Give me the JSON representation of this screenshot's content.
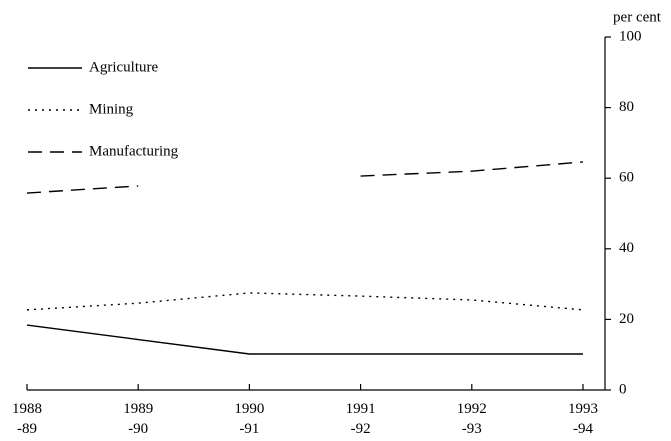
{
  "chart_data": {
    "type": "line",
    "y_axis_label": "per cent",
    "categories": [
      [
        "1988",
        "-89"
      ],
      [
        "1989",
        "-90"
      ],
      [
        "1990",
        "-91"
      ],
      [
        "1991",
        "-92"
      ],
      [
        "1992",
        "-93"
      ],
      [
        "1993",
        "-94"
      ]
    ],
    "series": [
      {
        "name": "Agriculture",
        "color": "#000000",
        "line_style": "solid",
        "values": [
          18.4,
          14.3,
          10.2,
          10.2,
          10.2,
          10.2
        ]
      },
      {
        "name": "Mining",
        "color": "#000000",
        "line_style": "dotted",
        "values": [
          22.7,
          24.6,
          27.5,
          26.6,
          25.5,
          22.7
        ]
      },
      {
        "name": "Manufacturing",
        "color": "#000000",
        "line_style": "dashed",
        "values": [
          55.8,
          57.8,
          null,
          60.6,
          62,
          64.6
        ]
      }
    ],
    "ylim": [
      0,
      100
    ],
    "yticks": [
      0,
      20,
      40,
      60,
      80,
      100
    ],
    "y_axis_side": "right"
  }
}
